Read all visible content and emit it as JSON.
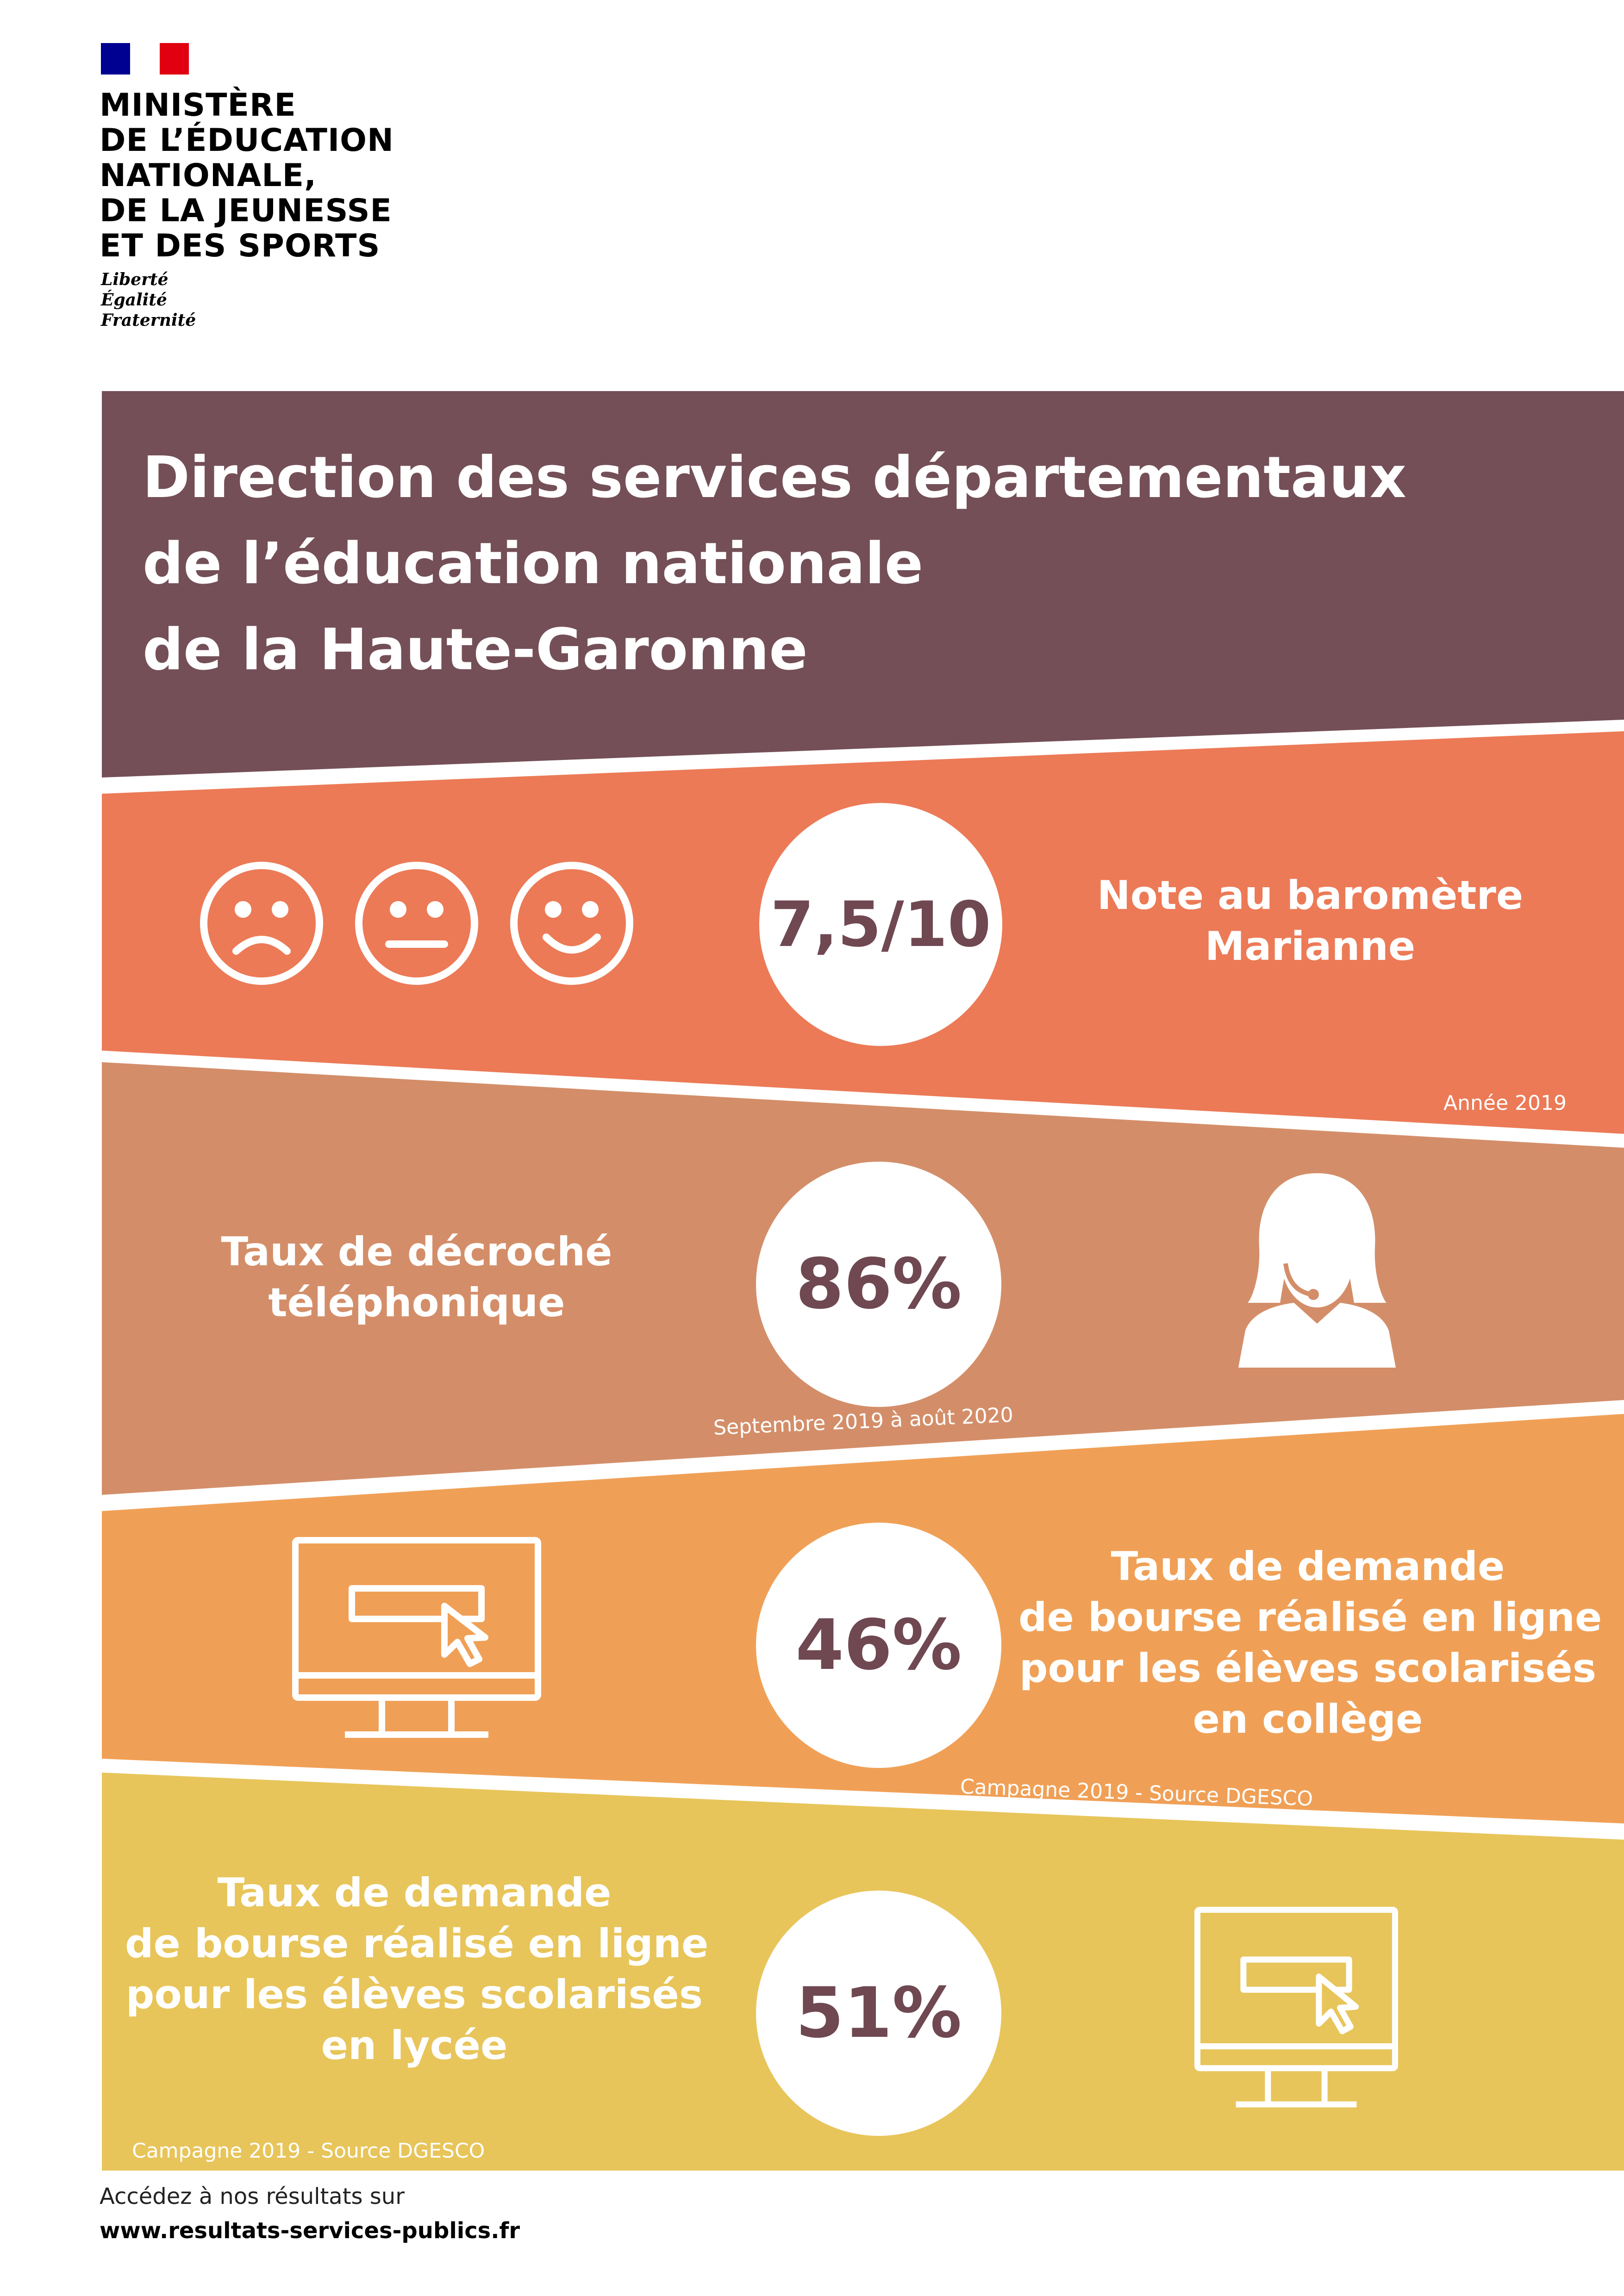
{
  "logo": {
    "ministry_lines": [
      "MINISTÈRE",
      "DE L’ÉDUCATION",
      "NATIONALE,",
      "DE LA JEUNESSE",
      "ET DES SPORTS"
    ],
    "motto_lines": [
      "Liberté",
      "Égalité",
      "Fraternité"
    ],
    "flag_colors": [
      "#000091",
      "#ffffff",
      "#e1000f"
    ]
  },
  "header": {
    "title_lines": [
      "Direction des services départementaux",
      "de l’éducation nationale",
      "de la Haute-Garonne"
    ],
    "color": "#744f57"
  },
  "bands": [
    {
      "color": "#ec7a56",
      "value": "7,5/10",
      "label_lines": [
        "Note au baromètre",
        "Marianne"
      ],
      "note": "Année 2019",
      "icons": [
        "sad-face-icon",
        "neutral-face-icon",
        "happy-face-icon"
      ]
    },
    {
      "color": "#d38e69",
      "value": "86%",
      "label_lines": [
        "Taux de décroché",
        "téléphonique"
      ],
      "note": "Septembre 2019 à août 2020",
      "icons": [
        "call-center-agent-icon"
      ]
    },
    {
      "color": "#f0a056",
      "value": "46%",
      "label_lines": [
        "Taux de demande",
        "de bourse réalisé en ligne",
        "pour les élèves scolarisés",
        "en collège"
      ],
      "note": "Campagne 2019 - Source DGESCO",
      "icons": [
        "computer-monitor-icon"
      ]
    },
    {
      "color": "#e8c55a",
      "value": "51%",
      "label_lines": [
        "Taux de demande",
        "de bourse réalisé en ligne",
        "pour les élèves scolarisés",
        "en lycée"
      ],
      "note": "Campagne 2019 - Source DGESCO",
      "icons": [
        "computer-monitor-icon"
      ]
    }
  ],
  "footer": {
    "line1": "Accédez à nos résultats sur",
    "line2": "www.resultats-services-publics.fr"
  }
}
